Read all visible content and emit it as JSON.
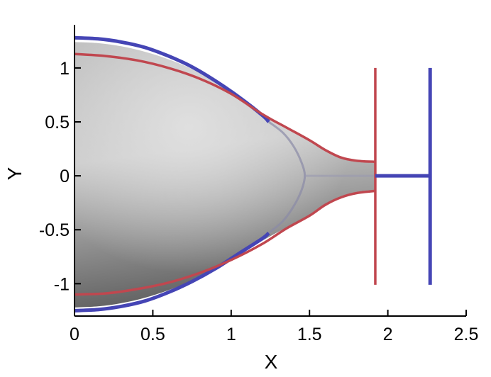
{
  "chart_data": {
    "type": "line",
    "title": "",
    "xlabel": "X",
    "ylabel": "Y",
    "xlim": [
      0,
      2.5
    ],
    "ylim": [
      -1.3,
      1.4
    ],
    "grid": false,
    "legend": "none",
    "xticks": [
      {
        "value": 0,
        "label": "0"
      },
      {
        "value": 0.5,
        "label": "0.5"
      },
      {
        "value": 1,
        "label": "1"
      },
      {
        "value": 1.5,
        "label": "1.5"
      },
      {
        "value": 2,
        "label": "2"
      },
      {
        "value": 2.5,
        "label": "2.5"
      }
    ],
    "yticks": [
      {
        "value": 1,
        "label": "1"
      },
      {
        "value": 0.5,
        "label": "0.5"
      },
      {
        "value": 0,
        "label": "0"
      },
      {
        "value": -0.5,
        "label": "-0.5"
      },
      {
        "value": -1,
        "label": "-1"
      }
    ],
    "colors": {
      "blue": "#4545b5",
      "red": "#c0474f",
      "surface_light": "#d8d8d8",
      "surface_dark": "#6a6a6a",
      "axis": "#000000"
    },
    "series": [
      {
        "color": "#4545b5",
        "x": [
          0,
          0.15,
          0.3,
          0.45,
          0.6,
          0.75,
          0.9,
          1.05,
          1.2,
          1.24
        ],
        "y": [
          1.28,
          1.27,
          1.24,
          1.19,
          1.11,
          1.01,
          0.88,
          0.73,
          0.56,
          0.5
        ]
      },
      {
        "color": "#4545b5",
        "x": [
          0,
          0.15,
          0.3,
          0.45,
          0.6,
          0.75,
          0.9,
          1.05,
          1.2,
          1.24
        ],
        "y": [
          -1.25,
          -1.24,
          -1.21,
          -1.16,
          -1.08,
          -0.98,
          -0.86,
          -0.72,
          -0.58,
          -0.53
        ]
      },
      {
        "color": "#c0474f",
        "x": [
          0,
          0.2,
          0.4,
          0.6,
          0.8,
          1.0,
          1.2,
          1.35,
          1.5,
          1.6,
          1.7,
          1.8,
          1.92
        ],
        "y": [
          1.13,
          1.11,
          1.07,
          1.0,
          0.9,
          0.76,
          0.57,
          0.45,
          0.33,
          0.24,
          0.17,
          0.14,
          0.13
        ]
      },
      {
        "color": "#c0474f",
        "x": [
          0,
          0.2,
          0.4,
          0.6,
          0.8,
          1.0,
          1.2,
          1.35,
          1.5,
          1.6,
          1.7,
          1.8,
          1.92
        ],
        "y": [
          -1.1,
          -1.09,
          -1.05,
          -0.99,
          -0.9,
          -0.78,
          -0.63,
          -0.49,
          -0.37,
          -0.27,
          -0.2,
          -0.16,
          -0.14
        ]
      },
      {
        "color": "#c0474f",
        "x": [
          1.92,
          1.92
        ],
        "y": [
          1.0,
          -1.01
        ]
      },
      {
        "color": "#4545b5",
        "x": [
          2.27,
          2.27
        ],
        "y": [
          1.0,
          -1.01
        ]
      },
      {
        "color": "#4545b5",
        "x": [
          1.92,
          2.27
        ],
        "y": [
          0.0,
          0.0
        ]
      }
    ],
    "surface": {
      "upper_x": [
        0,
        0.15,
        0.3,
        0.45,
        0.6,
        0.75,
        0.9,
        1.05,
        1.2,
        1.35,
        1.5,
        1.6,
        1.7,
        1.8,
        1.92
      ],
      "upper_y": [
        1.24,
        1.23,
        1.2,
        1.15,
        1.08,
        0.99,
        0.87,
        0.73,
        0.57,
        0.44,
        0.32,
        0.23,
        0.16,
        0.13,
        0.12
      ],
      "lower_x": [
        0,
        0.15,
        0.3,
        0.45,
        0.6,
        0.75,
        0.9,
        1.05,
        1.2,
        1.35,
        1.5,
        1.6,
        1.7,
        1.8,
        1.92
      ],
      "lower_y": [
        -1.22,
        -1.21,
        -1.18,
        -1.13,
        -1.06,
        -0.97,
        -0.86,
        -0.73,
        -0.6,
        -0.48,
        -0.36,
        -0.26,
        -0.19,
        -0.15,
        -0.13
      ],
      "arc_x": [
        1.24,
        1.33,
        1.4,
        1.45,
        1.47,
        1.45,
        1.4,
        1.33,
        1.24
      ],
      "arc_y": [
        0.5,
        0.4,
        0.27,
        0.12,
        0.0,
        -0.13,
        -0.28,
        -0.42,
        -0.53
      ]
    }
  }
}
